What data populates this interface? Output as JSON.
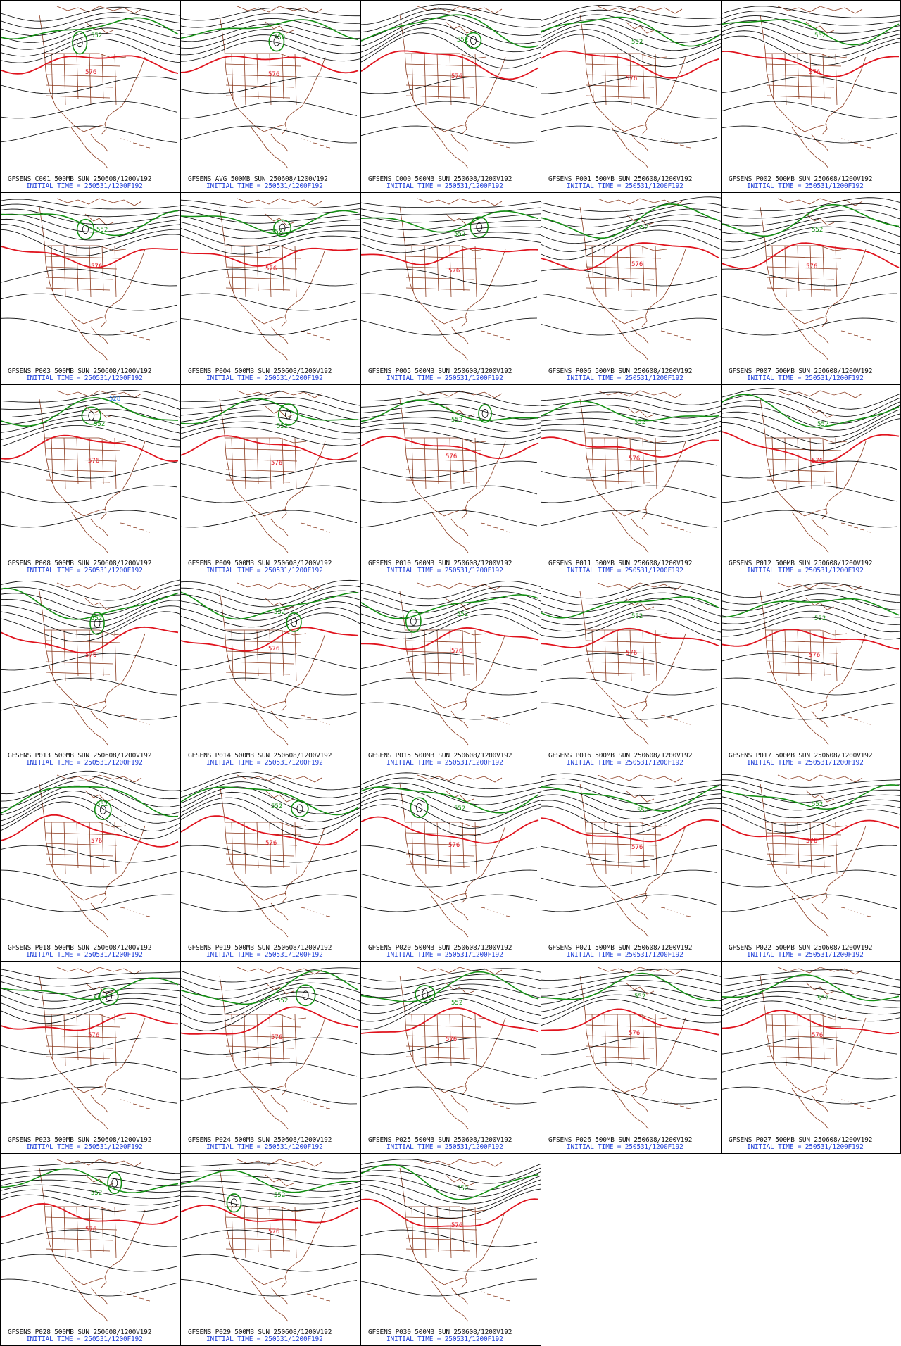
{
  "layout": {
    "columns": 5,
    "rows": 7
  },
  "colors": {
    "contour": "#000000",
    "height_576": "#e0141e",
    "height_552": "#138f13",
    "height_528": "#1e6fe0",
    "coastline": "#8b3a1e",
    "init_text": "#1f3fd8"
  },
  "panels": [
    {
      "model": "GFSENS C001 500MB SUN 250608/1200V192",
      "init": "INITIAL TIME = 250531/1200F192",
      "labels": [
        "576",
        "552"
      ]
    },
    {
      "model": "GFSENS AVG 500MB SUN 250608/1200V192",
      "init": "INITIAL TIME = 250531/1200F192",
      "labels": [
        "576",
        "552"
      ]
    },
    {
      "model": "GFSENS C000 500MB SUN 250608/1200V192",
      "init": "INITIAL TIME = 250531/1200F192",
      "labels": [
        "576",
        "552"
      ]
    },
    {
      "model": "GFSENS P001 500MB SUN 250608/1200V192",
      "init": "INITIAL TIME = 250531/1200F192",
      "labels": [
        "576",
        "552"
      ]
    },
    {
      "model": "GFSENS P002 500MB SUN 250608/1200V192",
      "init": "INITIAL TIME = 250531/1200F192",
      "labels": [
        "576",
        "552"
      ]
    },
    {
      "model": "GFSENS P003 500MB SUN 250608/1200V192",
      "init": "INITIAL TIME = 250531/1200F192",
      "labels": [
        "576",
        "552"
      ]
    },
    {
      "model": "GFSENS P004 500MB SUN 250608/1200V192",
      "init": "INITIAL TIME = 250531/1200F192",
      "labels": [
        "576",
        "552"
      ]
    },
    {
      "model": "GFSENS P005 500MB SUN 250608/1200V192",
      "init": "INITIAL TIME = 250531/1200F192",
      "labels": [
        "576",
        "552"
      ]
    },
    {
      "model": "GFSENS P006 500MB SUN 250608/1200V192",
      "init": "INITIAL TIME = 250531/1200F192",
      "labels": [
        "576",
        "552"
      ]
    },
    {
      "model": "GFSENS P007 500MB SUN 250608/1200V192",
      "init": "INITIAL TIME = 250531/1200F192",
      "labels": [
        "576",
        "552"
      ]
    },
    {
      "model": "GFSENS P008 500MB SUN 250608/1200V192",
      "init": "INITIAL TIME = 250531/1200F192",
      "labels": [
        "576",
        "552",
        "528"
      ]
    },
    {
      "model": "GFSENS P009 500MB SUN 250608/1200V192",
      "init": "INITIAL TIME = 250531/1200F192",
      "labels": [
        "576",
        "552"
      ]
    },
    {
      "model": "GFSENS P010 500MB SUN 250608/1200V192",
      "init": "INITIAL TIME = 250531/1200F192",
      "labels": [
        "576",
        "552"
      ]
    },
    {
      "model": "GFSENS P011 500MB SUN 250608/1200V192",
      "init": "INITIAL TIME = 250531/1200F192",
      "labels": [
        "576",
        "552"
      ]
    },
    {
      "model": "GFSENS P012 500MB SUN 250608/1200V192",
      "init": "INITIAL TIME = 250531/1200F192",
      "labels": [
        "576",
        "552"
      ]
    },
    {
      "model": "GFSENS P013 500MB SUN 250608/1200V192",
      "init": "INITIAL TIME = 250531/1200F192",
      "labels": [
        "576",
        "552"
      ]
    },
    {
      "model": "GFSENS P014 500MB SUN 250608/1200V192",
      "init": "INITIAL TIME = 250531/1200F192",
      "labels": [
        "576",
        "552"
      ]
    },
    {
      "model": "GFSENS P015 500MB SUN 250608/1200V192",
      "init": "INITIAL TIME = 250531/1200F192",
      "labels": [
        "576",
        "552"
      ]
    },
    {
      "model": "GFSENS P016 500MB SUN 250608/1200V192",
      "init": "INITIAL TIME = 250531/1200F192",
      "labels": [
        "576",
        "552"
      ]
    },
    {
      "model": "GFSENS P017 500MB SUN 250608/1200V192",
      "init": "INITIAL TIME = 250531/1200F192",
      "labels": [
        "576",
        "552"
      ]
    },
    {
      "model": "GFSENS P018 500MB SUN 250608/1200V192",
      "init": "INITIAL TIME = 250531/1200F192",
      "labels": [
        "576",
        "552"
      ]
    },
    {
      "model": "GFSENS P019 500MB SUN 250608/1200V192",
      "init": "INITIAL TIME = 250531/1200F192",
      "labels": [
        "576",
        "552"
      ]
    },
    {
      "model": "GFSENS P020 500MB SUN 250608/1200V192",
      "init": "INITIAL TIME = 250531/1200F192",
      "labels": [
        "576",
        "552"
      ]
    },
    {
      "model": "GFSENS P021 500MB SUN 250608/1200V192",
      "init": "INITIAL TIME = 250531/1200F192",
      "labels": [
        "576",
        "552"
      ]
    },
    {
      "model": "GFSENS P022 500MB SUN 250608/1200V192",
      "init": "INITIAL TIME = 250531/1200F192",
      "labels": [
        "576",
        "552"
      ]
    },
    {
      "model": "GFSENS P023 500MB SUN 250608/1200V192",
      "init": "INITIAL TIME = 250531/1200F192",
      "labels": [
        "576",
        "552"
      ]
    },
    {
      "model": "GFSENS P024 500MB SUN 250608/1200V192",
      "init": "INITIAL TIME = 250531/1200F192",
      "labels": [
        "576",
        "552"
      ]
    },
    {
      "model": "GFSENS P025 500MB SUN 250608/1200V192",
      "init": "INITIAL TIME = 250531/1200F192",
      "labels": [
        "576",
        "552"
      ]
    },
    {
      "model": "GFSENS P026 500MB SUN 250608/1200V192",
      "init": "INITIAL TIME = 250531/1200F192",
      "labels": [
        "576",
        "552"
      ]
    },
    {
      "model": "GFSENS P027 500MB SUN 250608/1200V192",
      "init": "INITIAL TIME = 250531/1200F192",
      "labels": [
        "576",
        "552"
      ]
    },
    {
      "model": "GFSENS P028 500MB SUN 250608/1200V192",
      "init": "INITIAL TIME = 250531/1200F192",
      "labels": [
        "576",
        "552"
      ]
    },
    {
      "model": "GFSENS P029 500MB SUN 250608/1200V192",
      "init": "INITIAL TIME = 250531/1200F192",
      "labels": [
        "576",
        "552"
      ]
    },
    {
      "model": "GFSENS P030 500MB SUN 250608/1200V192",
      "init": "INITIAL TIME = 250531/1200F192",
      "labels": [
        "576",
        "552"
      ]
    }
  ]
}
